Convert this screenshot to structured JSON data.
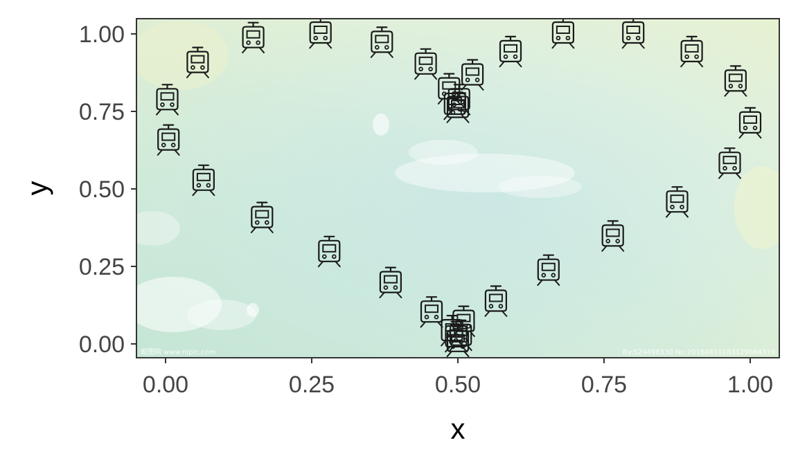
{
  "chart_data": {
    "type": "scatter",
    "xlabel": "x",
    "ylabel": "y",
    "xlim": [
      -0.05,
      1.05
    ],
    "ylim": [
      -0.05,
      1.05
    ],
    "x_ticks": [
      "0.00",
      "0.25",
      "0.50",
      "0.75",
      "1.00"
    ],
    "y_ticks": [
      "0.00",
      "0.25",
      "0.50",
      "0.75",
      "1.00"
    ],
    "grid": false,
    "marker_icon": "tram-icon",
    "background": "watercolor-sky-image",
    "watermark_left": "昵图网 www.nipic.com",
    "watermark_right": "By:524498330 No:20160410163129084319",
    "points": [
      {
        "x": 0.003,
        "y": 0.785
      },
      {
        "x": 0.005,
        "y": 0.655
      },
      {
        "x": 0.055,
        "y": 0.905
      },
      {
        "x": 0.065,
        "y": 0.525
      },
      {
        "x": 0.15,
        "y": 0.985
      },
      {
        "x": 0.165,
        "y": 0.405
      },
      {
        "x": 0.265,
        "y": 1.0
      },
      {
        "x": 0.28,
        "y": 0.295
      },
      {
        "x": 0.37,
        "y": 0.97
      },
      {
        "x": 0.385,
        "y": 0.195
      },
      {
        "x": 0.445,
        "y": 0.9
      },
      {
        "x": 0.455,
        "y": 0.1
      },
      {
        "x": 0.485,
        "y": 0.82
      },
      {
        "x": 0.49,
        "y": 0.04
      },
      {
        "x": 0.495,
        "y": 0.77
      },
      {
        "x": 0.497,
        "y": 0.02
      },
      {
        "x": 0.5,
        "y": 0.76
      },
      {
        "x": 0.5,
        "y": 0.005
      },
      {
        "x": 0.502,
        "y": 0.785
      },
      {
        "x": 0.505,
        "y": 0.025
      },
      {
        "x": 0.51,
        "y": 0.07
      },
      {
        "x": 0.525,
        "y": 0.865
      },
      {
        "x": 0.565,
        "y": 0.135
      },
      {
        "x": 0.59,
        "y": 0.94
      },
      {
        "x": 0.655,
        "y": 0.235
      },
      {
        "x": 0.68,
        "y": 1.0
      },
      {
        "x": 0.765,
        "y": 0.345
      },
      {
        "x": 0.8,
        "y": 1.0
      },
      {
        "x": 0.875,
        "y": 0.455
      },
      {
        "x": 0.9,
        "y": 0.94
      },
      {
        "x": 0.965,
        "y": 0.58
      },
      {
        "x": 0.975,
        "y": 0.845
      },
      {
        "x": 1.0,
        "y": 0.71
      }
    ]
  }
}
